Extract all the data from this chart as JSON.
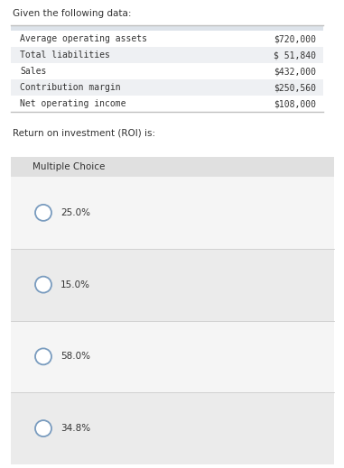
{
  "header_text": "Given the following data:",
  "table_bg_color": "#dde3ea",
  "table_row_colors": [
    "#ffffff",
    "#eef0f3",
    "#ffffff",
    "#eef0f3",
    "#ffffff"
  ],
  "table_rows": [
    [
      "Average operating assets",
      "$720,000"
    ],
    [
      "Total liabilities",
      "$ 51,840"
    ],
    [
      "Sales",
      "$432,000"
    ],
    [
      "Contribution margin",
      "$250,560"
    ],
    [
      "Net operating income",
      "$108,000"
    ]
  ],
  "roi_label": "Return on investment (ROI) is:",
  "mc_label": "Multiple Choice",
  "choices": [
    "25.0%",
    "15.0%",
    "58.0%",
    "34.8%"
  ],
  "bg_color": "#ffffff",
  "table_font": "monospace",
  "mc_bg_color": "#ebebeb",
  "mc_header_bg": "#e0e0e0",
  "choice_bg_light": "#f5f5f5",
  "choice_bg_mid": "#ebebeb",
  "text_color": "#333333",
  "circle_edge_color": "#7a9cbf",
  "circle_face_color": "#ffffff",
  "border_color": "#c0c0c0"
}
